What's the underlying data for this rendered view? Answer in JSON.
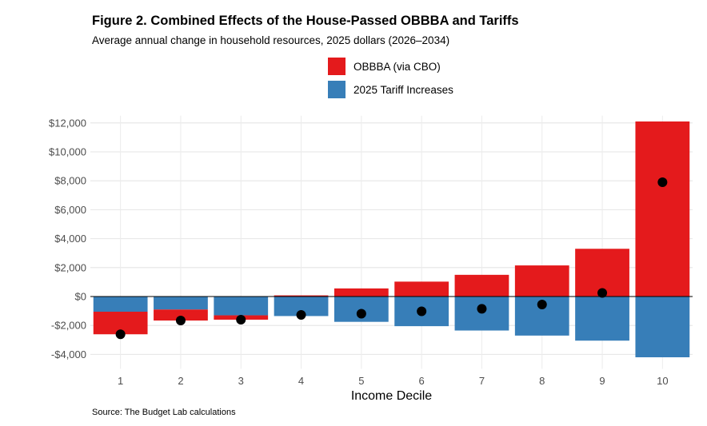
{
  "title": "Figure 2. Combined Effects of the House-Passed OBBBA and Tariffs",
  "subtitle": "Average annual change in household resources, 2025 dollars (2026–2034)",
  "source": "Source: The Budget Lab calculations",
  "legend": [
    {
      "label": "OBBBA (via CBO)",
      "color": "#e41a1c"
    },
    {
      "label": "2025 Tariff Increases",
      "color": "#377eb8"
    }
  ],
  "chart_data": {
    "type": "bar",
    "xlabel": "Income Decile",
    "ylabel": "",
    "categories": [
      "1",
      "2",
      "3",
      "4",
      "5",
      "6",
      "7",
      "8",
      "9",
      "10"
    ],
    "series": [
      {
        "name": "OBBBA (via CBO)",
        "color": "#e41a1c",
        "values": [
          -1560,
          -760,
          -300,
          80,
          560,
          1030,
          1500,
          2150,
          3300,
          12100
        ]
      },
      {
        "name": "2025 Tariff Increases",
        "color": "#377eb8",
        "values": [
          -1050,
          -900,
          -1300,
          -1350,
          -1750,
          -2050,
          -2350,
          -2700,
          -3050,
          -4200
        ]
      }
    ],
    "net_points": [
      -2610,
      -1660,
      -1600,
      -1270,
      -1190,
      -1020,
      -850,
      -550,
      250,
      7900
    ],
    "ylim": [
      -5000,
      12500
    ],
    "yticks": [
      -4000,
      -2000,
      0,
      2000,
      4000,
      6000,
      8000,
      10000,
      12000
    ],
    "ytick_labels": [
      "-$4,000",
      "-$2,000",
      "$0",
      "$2,000",
      "$4,000",
      "$6,000",
      "$8,000",
      "$10,000",
      "$12,000"
    ],
    "grid": true,
    "legend_position": "top"
  }
}
